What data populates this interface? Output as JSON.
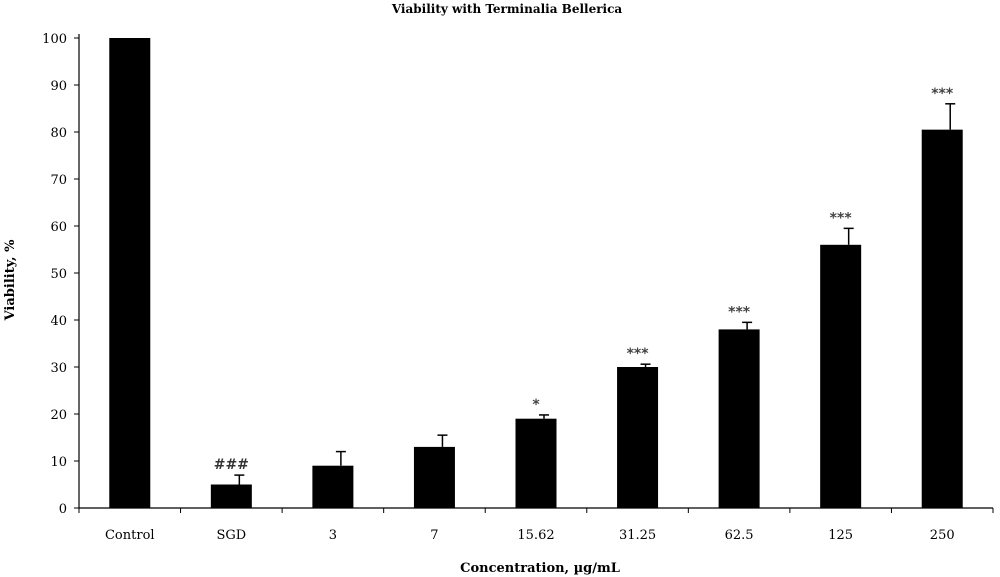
{
  "chart_data": {
    "type": "bar",
    "title": "Viability with Terminalia Bellerica",
    "xlabel": "Concentration, µg/mL",
    "ylabel": "Viability, %",
    "ylim": [
      0,
      100
    ],
    "yticks": [
      0,
      10,
      20,
      30,
      40,
      50,
      60,
      70,
      80,
      90,
      100
    ],
    "categories": [
      "Control",
      "SGD",
      "3",
      "7",
      "15.62",
      "31.25",
      "62.5",
      "125",
      "250"
    ],
    "values": [
      100,
      5,
      9,
      13,
      19,
      30,
      38,
      56,
      80.5
    ],
    "errors": [
      0,
      2,
      3,
      2.5,
      0.8,
      0.6,
      1.5,
      3.5,
      5.5
    ],
    "annotations": [
      "",
      "###",
      "",
      "",
      "*",
      "***",
      "***",
      "***",
      "***"
    ],
    "bar_color": "#000000",
    "grid": false
  }
}
